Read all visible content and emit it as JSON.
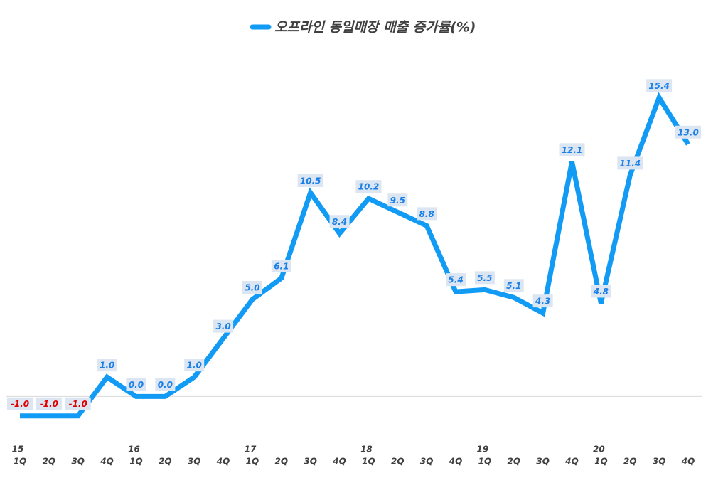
{
  "chart_data": {
    "type": "line",
    "categories": [
      "1Q",
      "2Q",
      "3Q",
      "4Q",
      "1Q",
      "2Q",
      "3Q",
      "4Q",
      "1Q",
      "2Q",
      "3Q",
      "4Q",
      "1Q",
      "2Q",
      "3Q",
      "4Q",
      "1Q",
      "2Q",
      "3Q",
      "4Q",
      "1Q",
      "2Q",
      "3Q",
      "4Q"
    ],
    "year_labels": [
      "15",
      null,
      null,
      null,
      "16",
      null,
      null,
      null,
      "17",
      null,
      null,
      null,
      "18",
      null,
      null,
      null,
      "19",
      null,
      null,
      null,
      "20",
      null,
      null,
      null
    ],
    "series": [
      {
        "name": "오프라인 동일매장 매출 증가률(%)",
        "color": "#119bf5",
        "values": [
          -1.0,
          -1.0,
          -1.0,
          1.0,
          0.0,
          0.0,
          1.0,
          3.0,
          5.0,
          6.1,
          10.5,
          8.4,
          10.2,
          9.5,
          8.8,
          5.4,
          5.5,
          5.1,
          4.3,
          12.1,
          4.8,
          11.4,
          15.4,
          13.0
        ],
        "value_labels": [
          "-1.0",
          "-1.0",
          "-1.0",
          "1.0",
          "0.0",
          "0.0",
          "1.0",
          "3.0",
          "5.0",
          "6.1",
          "10.5",
          "8.4",
          "10.2",
          "9.5",
          "8.8",
          "5.4",
          "5.5",
          "5.1",
          "4.3",
          "12.1",
          "4.8",
          "11.4",
          "15.4",
          "13.0"
        ]
      }
    ],
    "ylim": [
      -2,
      17.5
    ],
    "yticks": [
      0
    ],
    "label_color": "#1a7fe6",
    "negative_label_color": "#e00000",
    "label_background": "#dce6f2"
  }
}
